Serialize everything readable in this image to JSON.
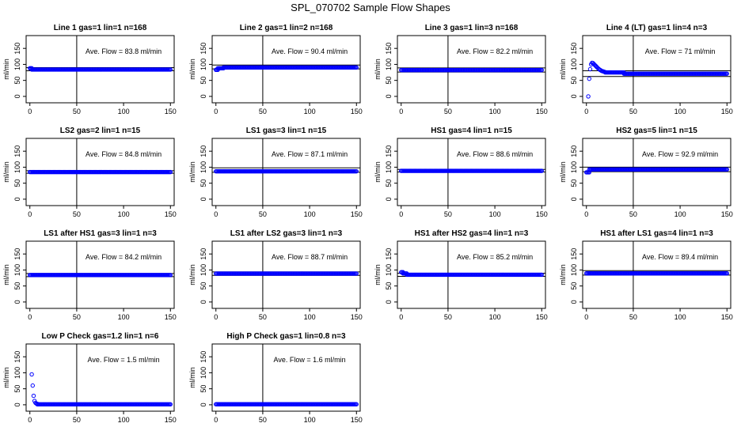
{
  "title": "SPL_070702  Sample Flow Shapes",
  "style": {
    "point_color": "#0000ff",
    "axis_color": "#000000"
  },
  "chart_data": [
    {
      "type": "scatter",
      "title": "Line 1 gas=1 lin=1 n=168",
      "ylabel": "ml/min",
      "xlim": [
        -4,
        154
      ],
      "ylim": [
        -20,
        190
      ],
      "xticks": [
        0,
        50,
        100,
        150
      ],
      "yticks": [
        0,
        50,
        100,
        150
      ],
      "vline": 50,
      "hlines": [
        90,
        80
      ],
      "annotation": "Ave. Flow =  83.8  ml/min",
      "segments": [
        {
          "x0": 0,
          "x1": 2,
          "y": 88
        },
        {
          "x0": 2,
          "x1": 150,
          "y": 83.8
        }
      ]
    },
    {
      "type": "scatter",
      "title": "Line 2 gas=1 lin=2 n=168",
      "ylabel": "ml/min",
      "xlim": [
        -4,
        154
      ],
      "ylim": [
        -20,
        190
      ],
      "xticks": [
        0,
        50,
        100,
        150
      ],
      "yticks": [
        0,
        50,
        100,
        150
      ],
      "vline": 50,
      "hlines": [
        98,
        86
      ],
      "annotation": "Ave. Flow =  90.4  ml/min",
      "segments": [
        {
          "x0": 0,
          "x1": 2,
          "y": 83
        },
        {
          "x0": 2,
          "x1": 8,
          "y": 88
        },
        {
          "x0": 8,
          "x1": 150,
          "y": 90.4
        }
      ]
    },
    {
      "type": "scatter",
      "title": "Line 3 gas=1 lin=3 n=168",
      "ylabel": "ml/min",
      "xlim": [
        -4,
        154
      ],
      "ylim": [
        -20,
        190
      ],
      "xticks": [
        0,
        50,
        100,
        150
      ],
      "yticks": [
        0,
        50,
        100,
        150
      ],
      "vline": 50,
      "hlines": [
        89,
        76
      ],
      "annotation": "Ave. Flow =  82.2  ml/min",
      "segments": [
        {
          "x0": 0,
          "x1": 150,
          "y": 82.2
        }
      ]
    },
    {
      "type": "scatter",
      "title": "Line 4 (LT) gas=1 lin=4 n=3",
      "ylabel": "ml/min",
      "xlim": [
        -4,
        154
      ],
      "ylim": [
        -20,
        190
      ],
      "xticks": [
        0,
        50,
        100,
        150
      ],
      "yticks": [
        0,
        50,
        100,
        150
      ],
      "vline": 50,
      "hlines": [
        80,
        62
      ],
      "annotation": "Ave. Flow =  71  ml/min",
      "points": [
        [
          2,
          0
        ],
        [
          3,
          55
        ],
        [
          4,
          85
        ],
        [
          5,
          100
        ],
        [
          6,
          105
        ],
        [
          7,
          104
        ],
        [
          8,
          101
        ],
        [
          9,
          98
        ],
        [
          10,
          95
        ],
        [
          11,
          92
        ],
        [
          12,
          89
        ],
        [
          13,
          86
        ],
        [
          14,
          84
        ],
        [
          15,
          82
        ],
        [
          16,
          80
        ],
        [
          17,
          79
        ],
        [
          18,
          78
        ],
        [
          19,
          77
        ],
        [
          20,
          76
        ]
      ],
      "segments": [
        {
          "x0": 20,
          "x1": 40,
          "y": 75
        },
        {
          "x0": 40,
          "x1": 150,
          "y": 71
        }
      ]
    },
    {
      "type": "scatter",
      "title": "LS2 gas=2 lin=1 n=15",
      "ylabel": "ml/min",
      "xlim": [
        -4,
        154
      ],
      "ylim": [
        -20,
        190
      ],
      "xticks": [
        0,
        50,
        100,
        150
      ],
      "yticks": [
        0,
        50,
        100,
        150
      ],
      "vline": 50,
      "hlines": [
        89,
        81
      ],
      "annotation": "Ave. Flow =  84.8  ml/min",
      "segments": [
        {
          "x0": 0,
          "x1": 150,
          "y": 84.8
        }
      ]
    },
    {
      "type": "scatter",
      "title": "LS1 gas=3 lin=1 n=15",
      "ylabel": "ml/min",
      "xlim": [
        -4,
        154
      ],
      "ylim": [
        -20,
        190
      ],
      "xticks": [
        0,
        50,
        100,
        150
      ],
      "yticks": [
        0,
        50,
        100,
        150
      ],
      "vline": 50,
      "hlines": [
        98,
        84
      ],
      "annotation": "Ave. Flow =  87.1  ml/min",
      "segments": [
        {
          "x0": 0,
          "x1": 150,
          "y": 87.1
        }
      ]
    },
    {
      "type": "scatter",
      "title": "HS1 gas=4 lin=1 n=15",
      "ylabel": "ml/min",
      "xlim": [
        -4,
        154
      ],
      "ylim": [
        -20,
        190
      ],
      "xticks": [
        0,
        50,
        100,
        150
      ],
      "yticks": [
        0,
        50,
        100,
        150
      ],
      "vline": 50,
      "hlines": [
        93,
        85
      ],
      "annotation": "Ave. Flow =  88.6  ml/min",
      "segments": [
        {
          "x0": 0,
          "x1": 150,
          "y": 88.6
        }
      ]
    },
    {
      "type": "scatter",
      "title": "HS2 gas=5 lin=1 n=15",
      "ylabel": "ml/min",
      "xlim": [
        -4,
        154
      ],
      "ylim": [
        -20,
        190
      ],
      "xticks": [
        0,
        50,
        100,
        150
      ],
      "yticks": [
        0,
        50,
        100,
        150
      ],
      "vline": 50,
      "hlines": [
        100,
        86
      ],
      "annotation": "Ave. Flow =  92.9  ml/min",
      "segments": [
        {
          "x0": 0,
          "x1": 3,
          "y": 84
        },
        {
          "x0": 3,
          "x1": 150,
          "y": 92.9
        }
      ]
    },
    {
      "type": "scatter",
      "title": "LS1 after HS1 gas=3 lin=1 n=3",
      "ylabel": "ml/min",
      "xlim": [
        -4,
        154
      ],
      "ylim": [
        -20,
        190
      ],
      "xticks": [
        0,
        50,
        100,
        150
      ],
      "yticks": [
        0,
        50,
        100,
        150
      ],
      "vline": 50,
      "hlines": [
        89,
        79
      ],
      "annotation": "Ave. Flow =  84.2  ml/min",
      "segments": [
        {
          "x0": 0,
          "x1": 150,
          "y": 84.2
        }
      ]
    },
    {
      "type": "scatter",
      "title": "LS1 after LS2 gas=3 lin=1 n=3",
      "ylabel": "ml/min",
      "xlim": [
        -4,
        154
      ],
      "ylim": [
        -20,
        190
      ],
      "xticks": [
        0,
        50,
        100,
        150
      ],
      "yticks": [
        0,
        50,
        100,
        150
      ],
      "vline": 50,
      "hlines": [
        94,
        83
      ],
      "annotation": "Ave. Flow =  88.7  ml/min",
      "segments": [
        {
          "x0": 0,
          "x1": 150,
          "y": 88.7
        }
      ]
    },
    {
      "type": "scatter",
      "title": "HS1 after HS2 gas=4 lin=1 n=3",
      "ylabel": "ml/min",
      "xlim": [
        -4,
        154
      ],
      "ylim": [
        -20,
        190
      ],
      "xticks": [
        0,
        50,
        100,
        150
      ],
      "yticks": [
        0,
        50,
        100,
        150
      ],
      "vline": 50,
      "hlines": [
        90,
        80
      ],
      "annotation": "Ave. Flow =  85.2  ml/min",
      "segments": [
        {
          "x0": 0,
          "x1": 2,
          "y": 93
        },
        {
          "x0": 2,
          "x1": 6,
          "y": 89
        },
        {
          "x0": 6,
          "x1": 150,
          "y": 85.2
        }
      ]
    },
    {
      "type": "scatter",
      "title": "HS1 after LS1 gas=4 lin=1 n=3",
      "ylabel": "ml/min",
      "xlim": [
        -4,
        154
      ],
      "ylim": [
        -20,
        190
      ],
      "xticks": [
        0,
        50,
        100,
        150
      ],
      "yticks": [
        0,
        50,
        100,
        150
      ],
      "vline": 50,
      "hlines": [
        98,
        84
      ],
      "annotation": "Ave. Flow =  89.4  ml/min",
      "segments": [
        {
          "x0": 0,
          "x1": 150,
          "y": 89.4
        }
      ]
    },
    {
      "type": "scatter",
      "title": "Low P Check gas=1.2 lin=1 n=6",
      "ylabel": "ml/min",
      "xlim": [
        -4,
        154
      ],
      "ylim": [
        -20,
        190
      ],
      "xticks": [
        0,
        50,
        100,
        150
      ],
      "yticks": [
        0,
        50,
        100,
        150
      ],
      "vline": 50,
      "hlines": [],
      "annotation": "Ave. Flow =  1.5  ml/min",
      "points": [
        [
          2,
          95
        ],
        [
          3,
          60
        ],
        [
          4,
          28
        ],
        [
          5,
          12
        ],
        [
          6,
          6
        ],
        [
          7,
          4
        ],
        [
          8,
          3
        ]
      ],
      "segments": [
        {
          "x0": 8,
          "x1": 150,
          "y": 1.5
        }
      ]
    },
    {
      "type": "scatter",
      "title": "High P Check gas=1 lin=0.8 n=3",
      "ylabel": "ml/min",
      "xlim": [
        -4,
        154
      ],
      "ylim": [
        -20,
        190
      ],
      "xticks": [
        0,
        50,
        100,
        150
      ],
      "yticks": [
        0,
        50,
        100,
        150
      ],
      "vline": 50,
      "hlines": [],
      "annotation": "Ave. Flow =  1.6  ml/min",
      "segments": [
        {
          "x0": 0,
          "x1": 150,
          "y": 1.6
        }
      ]
    }
  ]
}
